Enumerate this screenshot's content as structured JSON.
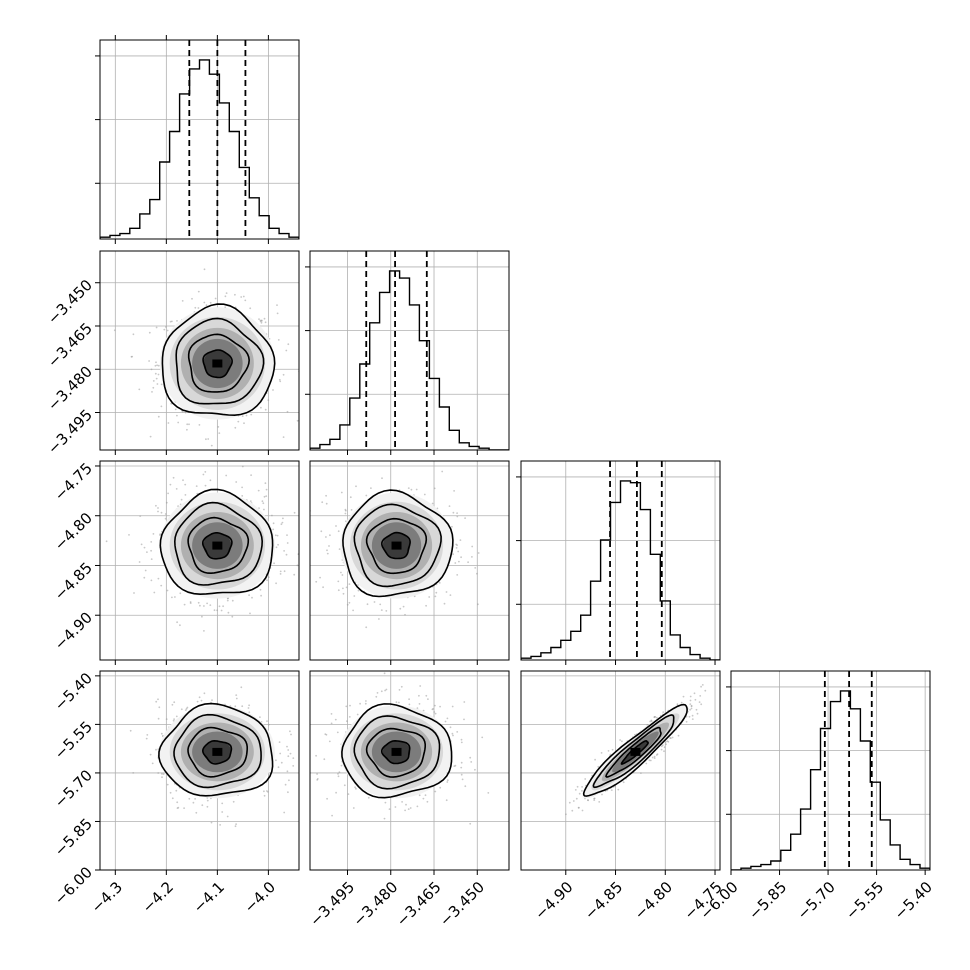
{
  "chart_data": {
    "type": "corner",
    "parameters": 4,
    "grid": true,
    "quantile_lines": "dashed",
    "tick_labels": {
      "p0_x": [
        "−4.3",
        "−4.2",
        "−4.1",
        "−4.0"
      ],
      "p1_x": [
        "−3.495",
        "−3.480",
        "−3.465",
        "−3.450"
      ],
      "p1_y": [
        "−3.450",
        "−3.465",
        "−3.480",
        "−3.495"
      ],
      "p2_x": [
        "−4.90",
        "−4.85",
        "−4.80",
        "−4.75"
      ],
      "p2_y": [
        "−4.75",
        "−4.80",
        "−4.85",
        "−4.90"
      ],
      "p3_x": [
        "−6.00",
        "−5.85",
        "−5.70",
        "−5.55",
        "−5.40"
      ],
      "p3_y": [
        "−5.40",
        "−5.55",
        "−5.70",
        "−5.85",
        "−6.00"
      ]
    },
    "params": [
      {
        "range": [
          -4.33,
          -3.94
        ],
        "ticks": [
          -4.3,
          -4.2,
          -4.1,
          -4.0
        ],
        "quantiles": [
          -4.155,
          -4.1,
          -4.045
        ],
        "mean": -4.1,
        "sd": 0.055
      },
      {
        "range": [
          -3.508,
          -3.439
        ],
        "ticks": [
          -3.495,
          -3.48,
          -3.465,
          -3.45
        ],
        "quantiles": [
          -3.4885,
          -3.4785,
          -3.4675
        ],
        "mean": -3.478,
        "sd": 0.0095
      },
      {
        "range": [
          -4.945,
          -4.745
        ],
        "ticks": [
          -4.9,
          -4.85,
          -4.8,
          -4.75
        ],
        "quantiles": [
          -4.8555,
          -4.8285,
          -4.8035
        ],
        "mean": -4.83,
        "sd": 0.026
      },
      {
        "range": [
          -6.0,
          -5.385
        ],
        "ticks": [
          -6.0,
          -5.85,
          -5.7,
          -5.55,
          -5.4
        ],
        "quantiles": [
          -5.71,
          -5.635,
          -5.565
        ],
        "mean": -5.635,
        "sd": 0.07
      }
    ],
    "histograms": [
      [
        1,
        2,
        3,
        6,
        14,
        22,
        43,
        60,
        81,
        95,
        100,
        92,
        76,
        60,
        40,
        23,
        13,
        6,
        3,
        1
      ],
      [
        1,
        3,
        6,
        14,
        29,
        48,
        71,
        88,
        100,
        96,
        81,
        61,
        40,
        24,
        11,
        4,
        2,
        1,
        0,
        0
      ],
      [
        1,
        2,
        4,
        7,
        11,
        16,
        25,
        44,
        67,
        88,
        100,
        99,
        84,
        59,
        33,
        14,
        7,
        3,
        1,
        0
      ],
      [
        0,
        1,
        2,
        3,
        5,
        11,
        20,
        34,
        56,
        79,
        94,
        100,
        90,
        72,
        49,
        28,
        14,
        6,
        3,
        1
      ]
    ],
    "correlations": [
      {
        "pair": [
          0,
          1
        ],
        "r": 0.0
      },
      {
        "pair": [
          0,
          2
        ],
        "r": 0.0
      },
      {
        "pair": [
          1,
          2
        ],
        "r": 0.0
      },
      {
        "pair": [
          0,
          3
        ],
        "r": 0.0
      },
      {
        "pair": [
          1,
          3
        ],
        "r": 0.0
      },
      {
        "pair": [
          2,
          3
        ],
        "r": 0.93
      }
    ]
  }
}
